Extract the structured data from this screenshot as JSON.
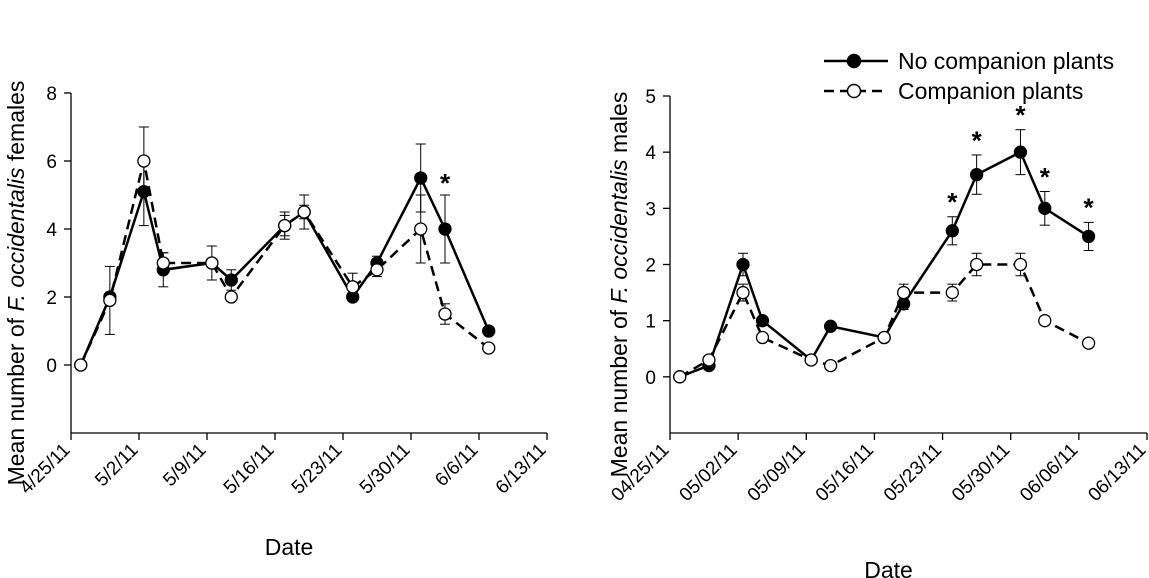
{
  "chart_data": [
    {
      "type": "line",
      "ylabel_prefix": "Mean number of ",
      "ylabel_italic": "F. occidentalis",
      "ylabel_suffix": " females",
      "xlabel": "Date",
      "ylim": [
        -2,
        8
      ],
      "yticks": [
        0,
        2,
        4,
        6,
        8
      ],
      "xlim": [
        0,
        49
      ],
      "xticks": [
        0,
        7,
        14,
        21,
        28,
        35,
        42,
        49
      ],
      "xtick_labels": [
        "4/25/11",
        "5/2/11",
        "5/9/11",
        "5/16/11",
        "5/23/11",
        "5/30/11",
        "6/6/11",
        "6/13/11"
      ],
      "series": [
        {
          "name": "No companion plants",
          "style": "solid-filled",
          "x": [
            1,
            4,
            7.5,
            9.5,
            14.5,
            16.5,
            22,
            24,
            29,
            31.5,
            36,
            38.5,
            43
          ],
          "y": [
            0,
            2,
            5.1,
            2.8,
            3,
            2.5,
            4.1,
            4.5,
            2,
            3,
            5.5,
            4,
            1
          ],
          "err": [
            0,
            0,
            1.0,
            0.5,
            0,
            0.3,
            0.4,
            0.5,
            0,
            0.2,
            1.0,
            1.0,
            0
          ]
        },
        {
          "name": "Companion plants",
          "style": "dashed-open",
          "x": [
            1,
            4,
            7.5,
            9.5,
            14.5,
            16.5,
            22,
            24,
            29,
            31.5,
            36,
            38.5,
            43
          ],
          "y": [
            0,
            1.9,
            6,
            3,
            3,
            2,
            4.1,
            4.5,
            2.3,
            2.8,
            4,
            1.5,
            0.5
          ],
          "err": [
            0,
            1.0,
            1.0,
            0.3,
            0.5,
            0,
            0.3,
            0.2,
            0.4,
            0.2,
            1.0,
            0.3,
            0
          ]
        }
      ],
      "annotations": [
        {
          "x": 38.5,
          "y": 5.5,
          "text": "*"
        }
      ]
    },
    {
      "type": "line",
      "ylabel_prefix": "Mean number of ",
      "ylabel_italic": "F. occidentalis",
      "ylabel_suffix": " males",
      "xlabel": "Date",
      "ylim": [
        -1,
        5
      ],
      "yticks": [
        0,
        1,
        2,
        3,
        4,
        5
      ],
      "xlim": [
        0,
        49
      ],
      "xticks": [
        0,
        7,
        14,
        21,
        28,
        35,
        42,
        49
      ],
      "xtick_labels": [
        "04/25/11",
        "05/02/11",
        "05/09/11",
        "05/16/11",
        "05/23/11",
        "05/30/11",
        "06/06/11",
        "06/13/11"
      ],
      "series": [
        {
          "name": "No companion plants",
          "style": "solid-filled",
          "x": [
            1,
            4,
            7.5,
            9.5,
            14.5,
            16.5,
            22,
            24,
            29,
            31.5,
            36,
            38.5,
            43
          ],
          "y": [
            0,
            0.2,
            2,
            1,
            0.3,
            0.9,
            0.7,
            1.3,
            2.6,
            3.6,
            4,
            3,
            2.5
          ],
          "err": [
            0,
            0,
            0.2,
            0,
            0,
            0,
            0,
            0.1,
            0.25,
            0.35,
            0.4,
            0.3,
            0.25
          ]
        },
        {
          "name": "Companion plants",
          "style": "dashed-open",
          "x": [
            1,
            4,
            7.5,
            9.5,
            14.5,
            16.5,
            22,
            24,
            29,
            31.5,
            36,
            38.5,
            43
          ],
          "y": [
            0,
            0.3,
            1.5,
            0.7,
            0.3,
            0.2,
            0.7,
            1.5,
            1.5,
            2,
            2,
            1,
            0.6
          ],
          "err": [
            0,
            0,
            0.15,
            0,
            0,
            0,
            0,
            0.15,
            0.15,
            0.2,
            0.2,
            0,
            0
          ]
        }
      ],
      "annotations": [
        {
          "x": 29,
          "y": 3.2,
          "text": "*"
        },
        {
          "x": 31.5,
          "y": 4.3,
          "text": "*"
        },
        {
          "x": 36,
          "y": 4.75,
          "text": "*"
        },
        {
          "x": 38.5,
          "y": 3.65,
          "text": "*"
        },
        {
          "x": 43,
          "y": 3.1,
          "text": "*"
        }
      ]
    }
  ],
  "legend": {
    "items": [
      "No companion plants",
      "Companion plants"
    ]
  }
}
